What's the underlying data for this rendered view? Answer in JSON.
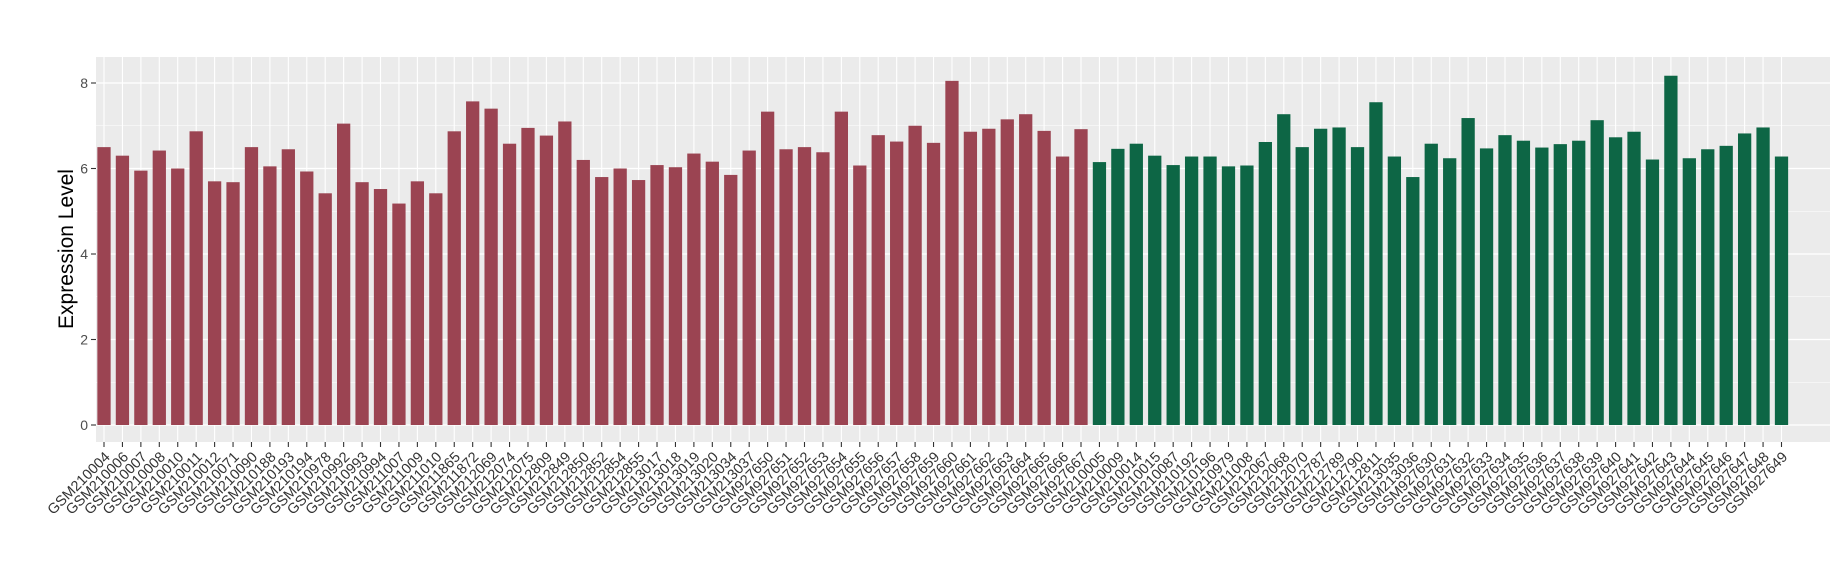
{
  "chart_data": {
    "type": "bar",
    "ylabel": "Expression Level",
    "xlabel": "",
    "ylim": [
      0,
      8.6
    ],
    "yticks": [
      0,
      2,
      4,
      6,
      8
    ],
    "grid": true,
    "colors": {
      "group1": "#9b4452",
      "group2": "#0d6645",
      "panel": "#ebebeb",
      "grid": "#ffffff"
    },
    "categories": [
      "GSM210004",
      "GSM210006",
      "GSM210007",
      "GSM210008",
      "GSM210010",
      "GSM210011",
      "GSM210012",
      "GSM210071",
      "GSM210090",
      "GSM210188",
      "GSM210193",
      "GSM210194",
      "GSM210978",
      "GSM210992",
      "GSM210993",
      "GSM210994",
      "GSM211007",
      "GSM211009",
      "GSM211010",
      "GSM211865",
      "GSM211872",
      "GSM212069",
      "GSM212074",
      "GSM212075",
      "GSM212809",
      "GSM212849",
      "GSM212850",
      "GSM212852",
      "GSM212854",
      "GSM212855",
      "GSM213017",
      "GSM213018",
      "GSM213019",
      "GSM213020",
      "GSM213034",
      "GSM213037",
      "GSM927650",
      "GSM927651",
      "GSM927652",
      "GSM927653",
      "GSM927654",
      "GSM927655",
      "GSM927656",
      "GSM927657",
      "GSM927658",
      "GSM927659",
      "GSM927660",
      "GSM927661",
      "GSM927662",
      "GSM927663",
      "GSM927664",
      "GSM927665",
      "GSM927666",
      "GSM927667",
      "GSM210005",
      "GSM210009",
      "GSM210014",
      "GSM210015",
      "GSM210087",
      "GSM210192",
      "GSM210196",
      "GSM210979",
      "GSM211008",
      "GSM212067",
      "GSM212068",
      "GSM212070",
      "GSM212787",
      "GSM212789",
      "GSM212790",
      "GSM212811",
      "GSM213035",
      "GSM213036",
      "GSM927630",
      "GSM927631",
      "GSM927632",
      "GSM927633",
      "GSM927634",
      "GSM927635",
      "GSM927636",
      "GSM927637",
      "GSM927638",
      "GSM927639",
      "GSM927640",
      "GSM927641",
      "GSM927642",
      "GSM927643",
      "GSM927644",
      "GSM927645",
      "GSM927646",
      "GSM927647",
      "GSM927648",
      "GSM927649"
    ],
    "values": [
      6.5,
      6.3,
      5.95,
      6.42,
      6.0,
      6.87,
      5.7,
      5.68,
      6.5,
      6.05,
      6.45,
      5.93,
      5.42,
      7.05,
      5.68,
      5.52,
      5.18,
      5.7,
      5.42,
      6.87,
      7.57,
      7.4,
      6.58,
      6.95,
      6.77,
      7.1,
      6.2,
      5.8,
      6.0,
      5.73,
      6.08,
      6.03,
      6.35,
      6.16,
      5.85,
      6.42,
      7.33,
      6.45,
      6.5,
      6.38,
      7.33,
      6.07,
      6.78,
      6.63,
      7.0,
      6.6,
      8.05,
      6.86,
      6.93,
      7.15,
      7.27,
      6.88,
      6.28,
      6.92,
      6.15,
      6.46,
      6.58,
      6.3,
      6.08,
      6.28,
      6.28,
      6.05,
      6.07,
      6.62,
      7.27,
      6.5,
      6.93,
      6.96,
      6.5,
      7.55,
      6.28,
      5.8,
      6.58,
      6.24,
      7.18,
      6.47,
      6.78,
      6.65,
      6.49,
      6.57,
      6.65,
      7.13,
      6.73,
      6.86,
      6.21,
      8.17,
      6.24,
      6.45,
      6.53,
      6.82,
      6.96,
      6.28
    ],
    "groups": [
      1,
      1,
      1,
      1,
      1,
      1,
      1,
      1,
      1,
      1,
      1,
      1,
      1,
      1,
      1,
      1,
      1,
      1,
      1,
      1,
      1,
      1,
      1,
      1,
      1,
      1,
      1,
      1,
      1,
      1,
      1,
      1,
      1,
      1,
      1,
      1,
      1,
      1,
      1,
      1,
      1,
      1,
      1,
      1,
      1,
      1,
      1,
      1,
      1,
      1,
      1,
      1,
      1,
      1,
      2,
      2,
      2,
      2,
      2,
      2,
      2,
      2,
      2,
      2,
      2,
      2,
      2,
      2,
      2,
      2,
      2,
      2,
      2,
      2,
      2,
      2,
      2,
      2,
      2,
      2,
      2,
      2,
      2,
      2,
      2,
      2,
      2,
      2,
      2,
      2,
      2,
      2
    ]
  }
}
